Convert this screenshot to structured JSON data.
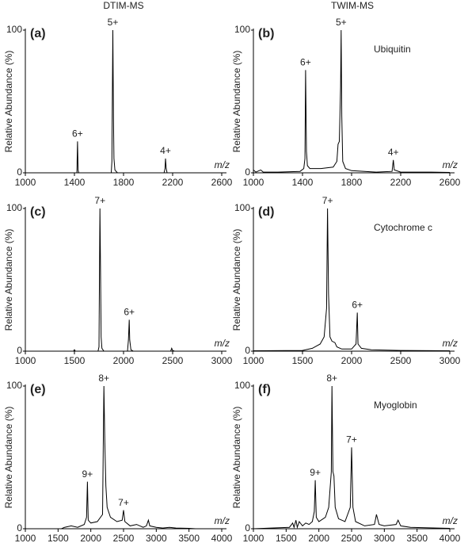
{
  "column_titles": [
    "DTIM-MS",
    "TWIM-MS"
  ],
  "chart_data": [
    {
      "type": "line",
      "panel": "(a)",
      "ylabel": "Relative Abundance (%)",
      "xlabel": "m/z",
      "x": [
        1000,
        1420,
        1425,
        1430,
        1435,
        1700,
        1705,
        1713,
        1718,
        1722,
        1730,
        1750,
        2130,
        2138,
        2142,
        2148,
        2155,
        2600
      ],
      "values": [
        0,
        0,
        22,
        2,
        0,
        0,
        8,
        100,
        38,
        10,
        2,
        0,
        0,
        3,
        10,
        3,
        0,
        0
      ],
      "xlim": [
        1000,
        2600
      ],
      "xticks": [
        1000,
        1400,
        1800,
        2200,
        2600
      ],
      "ylim": [
        0,
        100
      ],
      "yticks": [
        0,
        100
      ],
      "annotations": [
        {
          "text": "6+",
          "x": 1425,
          "y": 22
        },
        {
          "text": "5+",
          "x": 1713,
          "y": 100
        },
        {
          "text": "4+",
          "x": 2142,
          "y": 10
        }
      ]
    },
    {
      "type": "line",
      "panel": "(b)",
      "label": "Ubiquitin",
      "ylabel": "Relative Abundance (%)",
      "xlabel": "m/z",
      "x": [
        1000,
        1020,
        1060,
        1080,
        1200,
        1380,
        1410,
        1420,
        1425,
        1432,
        1440,
        1460,
        1550,
        1650,
        1680,
        1690,
        1700,
        1710,
        1715,
        1720,
        1728,
        1750,
        1800,
        2000,
        2130,
        2140,
        2148,
        2200,
        2450,
        2600
      ],
      "values": [
        2,
        0.5,
        2,
        0.5,
        0.5,
        1,
        3,
        10,
        72,
        15,
        5,
        3,
        3,
        4,
        8,
        20,
        22,
        60,
        100,
        40,
        8,
        3,
        1.5,
        0.5,
        1,
        9,
        2,
        0.5,
        0.5,
        0.3
      ],
      "xlim": [
        1000,
        2600
      ],
      "xticks": [
        1000,
        1400,
        1800,
        2200,
        2600
      ],
      "ylim": [
        0,
        100
      ],
      "yticks": [
        0,
        100
      ],
      "annotations": [
        {
          "text": "6+",
          "x": 1425,
          "y": 72
        },
        {
          "text": "5+",
          "x": 1715,
          "y": 100
        },
        {
          "text": "4+",
          "x": 2140,
          "y": 9
        }
      ]
    },
    {
      "type": "line",
      "panel": "(c)",
      "ylabel": "Relative Abundance (%)",
      "xlabel": "m/z",
      "x": [
        1000,
        1490,
        1500,
        1510,
        1740,
        1750,
        1760,
        1765,
        1772,
        1780,
        1800,
        2040,
        2050,
        2058,
        2063,
        2075,
        2100,
        2480,
        2490,
        2500,
        2520,
        3000
      ],
      "values": [
        0,
        0,
        1,
        0,
        0,
        3,
        100,
        60,
        10,
        2,
        0,
        0,
        8,
        22,
        8,
        1,
        0,
        0,
        2,
        0.5,
        0,
        0
      ],
      "xlim": [
        1000,
        3000
      ],
      "xticks": [
        1000,
        1500,
        2000,
        2500,
        3000
      ],
      "ylim": [
        0,
        100
      ],
      "yticks": [
        0,
        100
      ],
      "annotations": [
        {
          "text": "7+",
          "x": 1760,
          "y": 100
        },
        {
          "text": "6+",
          "x": 2058,
          "y": 22
        }
      ]
    },
    {
      "type": "line",
      "panel": "(d)",
      "label": "Cytochrome c",
      "ylabel": "Relative Abundance (%)",
      "xlabel": "m/z",
      "x": [
        1000,
        1500,
        1600,
        1680,
        1720,
        1745,
        1755,
        1765,
        1780,
        1800,
        1830,
        1850,
        1900,
        2000,
        2045,
        2058,
        2065,
        2100,
        2200,
        2500,
        3000
      ],
      "values": [
        0.3,
        0.5,
        2,
        5,
        10,
        30,
        100,
        40,
        10,
        7,
        6,
        3,
        1.5,
        1.5,
        5,
        27,
        5,
        2,
        1,
        0.5,
        0.3
      ],
      "xlim": [
        1000,
        3000
      ],
      "xticks": [
        1000,
        1500,
        2000,
        2500,
        3000
      ],
      "ylim": [
        0,
        100
      ],
      "yticks": [
        0,
        100
      ],
      "annotations": [
        {
          "text": "7+",
          "x": 1755,
          "y": 100
        },
        {
          "text": "6+",
          "x": 2058,
          "y": 27
        }
      ]
    },
    {
      "type": "line",
      "panel": "(e)",
      "ylabel": "Relative Abundance (%)",
      "xlabel": "m/z",
      "x": [
        1000,
        1550,
        1600,
        1700,
        1800,
        1900,
        1935,
        1948,
        1960,
        2000,
        2100,
        2180,
        2200,
        2215,
        2230,
        2250,
        2300,
        2400,
        2480,
        2500,
        2520,
        2600,
        2700,
        2800,
        2850,
        2880,
        2900,
        3000,
        3100,
        3200,
        3300,
        3500,
        3600,
        4000
      ],
      "values": [
        0,
        0,
        1,
        2,
        1,
        3,
        8,
        33,
        6,
        4,
        5,
        10,
        100,
        60,
        30,
        15,
        8,
        5,
        6,
        13,
        5,
        2,
        3,
        1,
        2,
        6,
        2,
        1,
        0.5,
        1,
        0.5,
        0.3,
        0,
        0
      ],
      "xlim": [
        1000,
        4000
      ],
      "xticks": [
        1000,
        1500,
        2000,
        2500,
        3000,
        3500,
        4000
      ],
      "ylim": [
        0,
        100
      ],
      "yticks": [
        0,
        100
      ],
      "annotations": [
        {
          "text": "9+",
          "x": 1948,
          "y": 33
        },
        {
          "text": "8+",
          "x": 2200,
          "y": 100
        },
        {
          "text": "7+",
          "x": 2500,
          "y": 13
        }
      ]
    },
    {
      "type": "line",
      "panel": "(f)",
      "label": "Myoglobin",
      "ylabel": "Relative Abundance (%)",
      "xlabel": "m/z",
      "x": [
        1000,
        1550,
        1600,
        1620,
        1650,
        1670,
        1700,
        1750,
        1800,
        1850,
        1900,
        1930,
        1945,
        1960,
        2000,
        2100,
        2150,
        2190,
        2200,
        2215,
        2230,
        2250,
        2300,
        2400,
        2480,
        2500,
        2520,
        2560,
        2700,
        2850,
        2880,
        2920,
        3000,
        3180,
        3210,
        3250,
        3400,
        3800,
        4000
      ],
      "values": [
        0,
        1,
        4,
        1,
        6,
        1,
        5,
        2,
        4,
        3,
        5,
        12,
        34,
        8,
        5,
        8,
        15,
        40,
        100,
        40,
        37,
        15,
        7,
        5,
        15,
        57,
        15,
        5,
        2,
        3,
        10,
        3,
        2,
        3,
        6,
        2,
        1,
        0.5,
        0.3
      ],
      "xlim": [
        1000,
        4000
      ],
      "xticks": [
        1000,
        1500,
        2000,
        2500,
        3000,
        3500,
        4000
      ],
      "ylim": [
        0,
        100
      ],
      "yticks": [
        0,
        100
      ],
      "annotations": [
        {
          "text": "9+",
          "x": 1945,
          "y": 34
        },
        {
          "text": "8+",
          "x": 2200,
          "y": 100
        },
        {
          "text": "7+",
          "x": 2500,
          "y": 57
        }
      ]
    }
  ]
}
